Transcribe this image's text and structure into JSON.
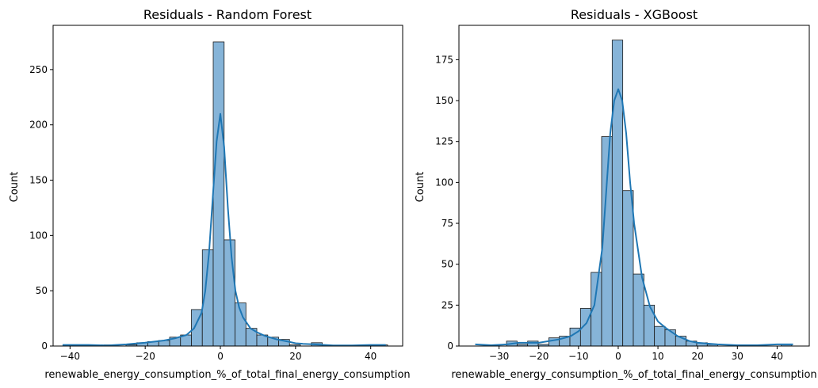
{
  "chart_data": [
    {
      "type": "bar",
      "title": "Residuals - Random Forest",
      "xlabel": "renewable_energy_consumption_%_of_total_final_energy_consumption",
      "ylabel": "Count",
      "xlim": [
        -44.5,
        48.5
      ],
      "ylim": [
        0,
        290
      ],
      "xticks": [
        -40,
        -20,
        0,
        20,
        40
      ],
      "yticks": [
        0,
        50,
        100,
        150,
        200,
        250
      ],
      "bin_start": -42.5,
      "bin_width": 2.9,
      "counts": [
        0,
        0,
        0,
        0,
        1,
        0,
        1,
        3,
        4,
        5,
        8,
        10,
        33,
        87,
        275,
        96,
        39,
        16,
        10,
        8,
        6,
        1,
        0,
        3,
        0,
        0,
        0,
        0,
        0,
        1
      ],
      "kde": {
        "x": [
          -42,
          -35,
          -30,
          -25,
          -20,
          -15,
          -12,
          -9,
          -7,
          -5,
          -4,
          -3,
          -2,
          -1,
          0,
          1,
          2,
          3,
          4,
          5,
          6,
          8,
          10,
          12,
          15,
          18,
          20,
          22,
          25,
          30,
          35,
          40,
          44
        ],
        "y": [
          1,
          1,
          0.5,
          1.5,
          3,
          5,
          7,
          10,
          16,
          30,
          50,
          85,
          135,
          185,
          210,
          180,
          125,
          80,
          50,
          35,
          26,
          16,
          12,
          9,
          6,
          4,
          2.5,
          2,
          1.5,
          0.5,
          0.5,
          1,
          1
        ]
      },
      "colors": {
        "bar_fill": "#86b4d8",
        "bar_edge": "#1a1a1a",
        "kde_line": "#1f77b4"
      }
    },
    {
      "type": "bar",
      "title": "Residuals - XGBoost",
      "xlabel": "renewable_energy_consumption_%_of_total_final_energy_consumption",
      "ylabel": "Count",
      "xlim": [
        -40.1,
        48.1
      ],
      "ylim": [
        0,
        196
      ],
      "xticks": [
        -30,
        -20,
        -10,
        0,
        10,
        20,
        30,
        40
      ],
      "yticks": [
        0,
        25,
        50,
        75,
        100,
        125,
        150,
        175
      ],
      "bin_start": -36.1,
      "bin_width": 2.66,
      "counts": [
        0,
        0,
        0,
        3,
        1,
        3,
        1,
        5,
        6,
        11,
        23,
        45,
        128,
        187,
        95,
        44,
        25,
        12,
        10,
        6,
        3,
        2,
        1,
        0,
        0,
        0,
        0,
        0,
        0,
        1
      ],
      "kde": {
        "x": [
          -36,
          -32,
          -28,
          -25,
          -20,
          -15,
          -12,
          -10,
          -8,
          -6,
          -4,
          -3,
          -2,
          -1,
          0,
          1,
          2,
          3,
          4,
          6,
          8,
          10,
          12,
          15,
          18,
          20,
          25,
          30,
          35,
          40,
          44
        ],
        "y": [
          1,
          0.5,
          1,
          2,
          2,
          4,
          6,
          9,
          14,
          25,
          60,
          95,
          130,
          150,
          157,
          150,
          130,
          100,
          75,
          42,
          24,
          15,
          11,
          6,
          3,
          2,
          1,
          0.5,
          0.5,
          1,
          1
        ]
      },
      "colors": {
        "bar_fill": "#86b4d8",
        "bar_edge": "#1a1a1a",
        "kde_line": "#1f77b4"
      }
    }
  ]
}
